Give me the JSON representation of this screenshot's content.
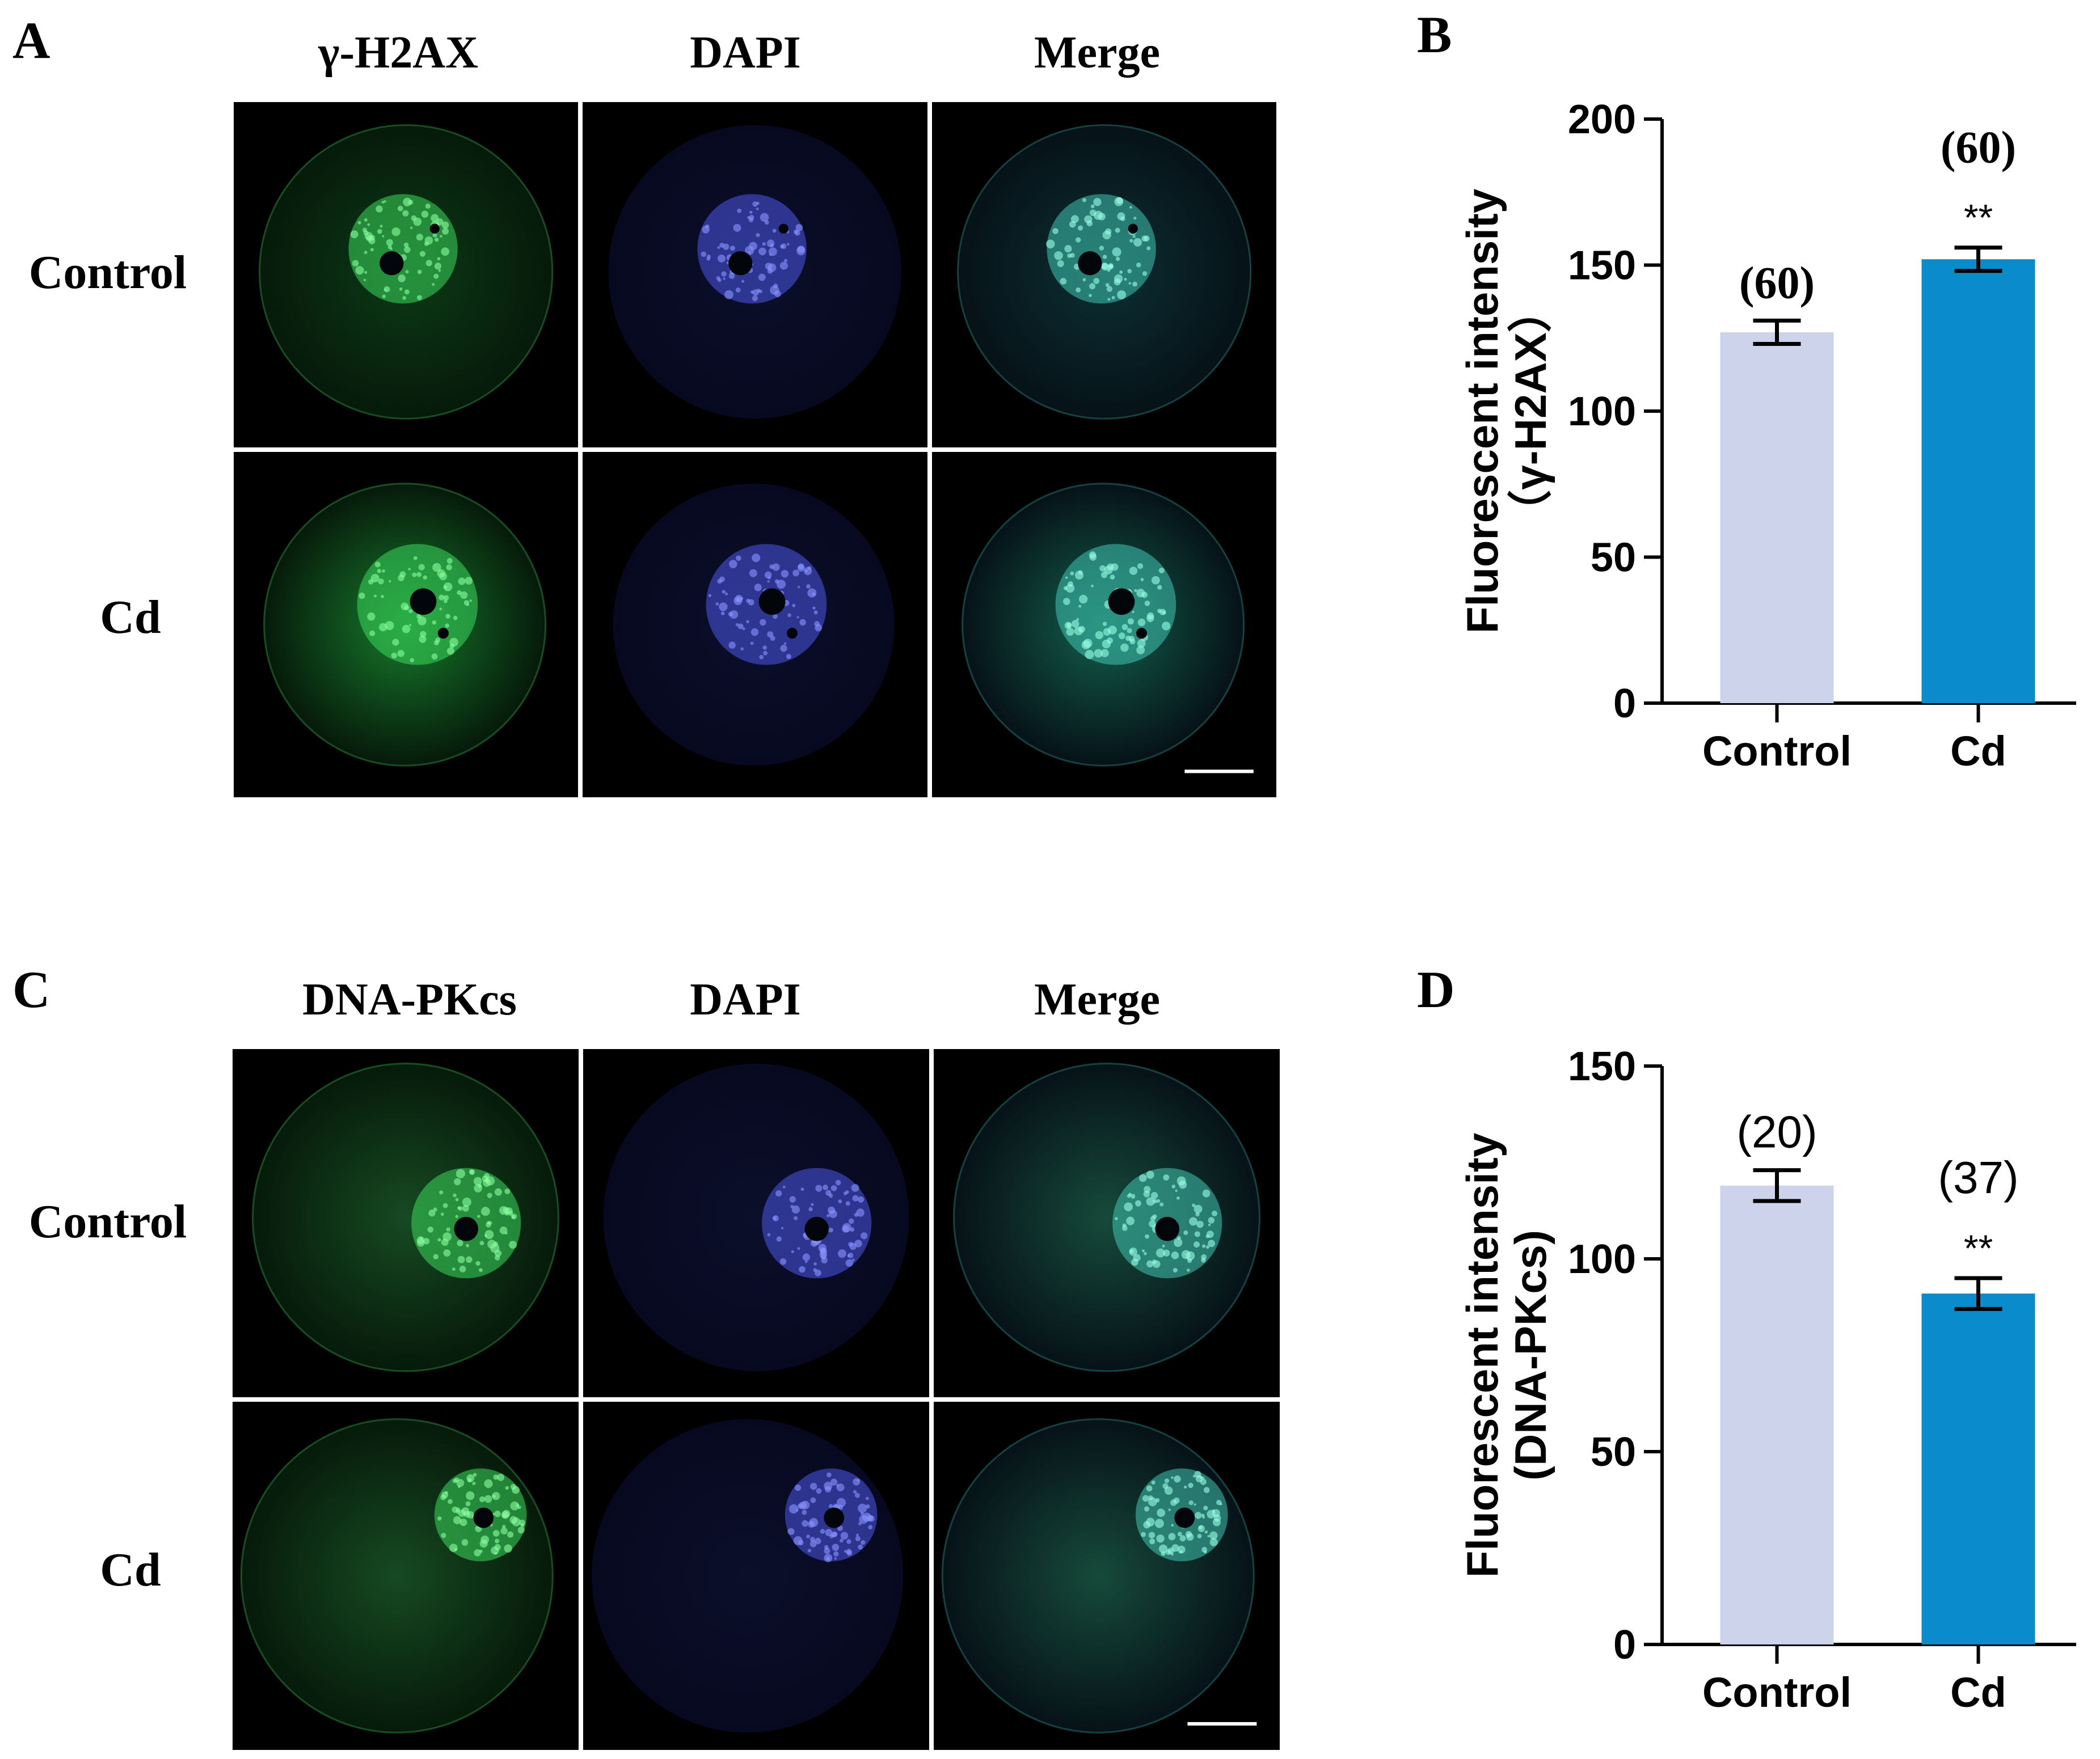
{
  "panels": {
    "A": {
      "letter": "A",
      "columns": [
        "γ-H2AX",
        "DAPI",
        "Merge"
      ],
      "rows": [
        "Control",
        "Cd"
      ]
    },
    "B": {
      "letter": "B"
    },
    "C": {
      "letter": "C",
      "columns": [
        "DNA-PKcs",
        "DAPI",
        "Merge"
      ],
      "rows": [
        "Control",
        "Cd"
      ]
    },
    "D": {
      "letter": "D"
    }
  },
  "colors": {
    "control_bar": "#cdd3ea",
    "cd_bar": "#0a8ccc",
    "green": "#2fd25a",
    "blue": "#3a4ef0"
  },
  "chart_data": [
    {
      "panel": "B",
      "type": "bar",
      "categories": [
        "Control",
        "Cd"
      ],
      "values": [
        127,
        152
      ],
      "errors": [
        4,
        4
      ],
      "n_labels": [
        "(60)",
        "(60)"
      ],
      "significance": [
        "",
        "**"
      ],
      "ylabel": "Fluorescent intensity\n（γ-H2AX）",
      "ylim": [
        0,
        200
      ],
      "yticks": [
        0,
        50,
        100,
        150,
        200
      ],
      "n_label_font": "serif"
    },
    {
      "panel": "D",
      "type": "bar",
      "categories": [
        "Control",
        "Cd"
      ],
      "values": [
        119,
        91
      ],
      "errors": [
        4,
        4
      ],
      "n_labels": [
        "(20)",
        "(37)"
      ],
      "significance": [
        "",
        "**"
      ],
      "ylabel": "Fluorescent intensity\n(DNA-PKcs)",
      "ylim": [
        0,
        150
      ],
      "yticks": [
        0,
        50,
        100,
        150
      ],
      "n_label_font": "sans"
    }
  ]
}
